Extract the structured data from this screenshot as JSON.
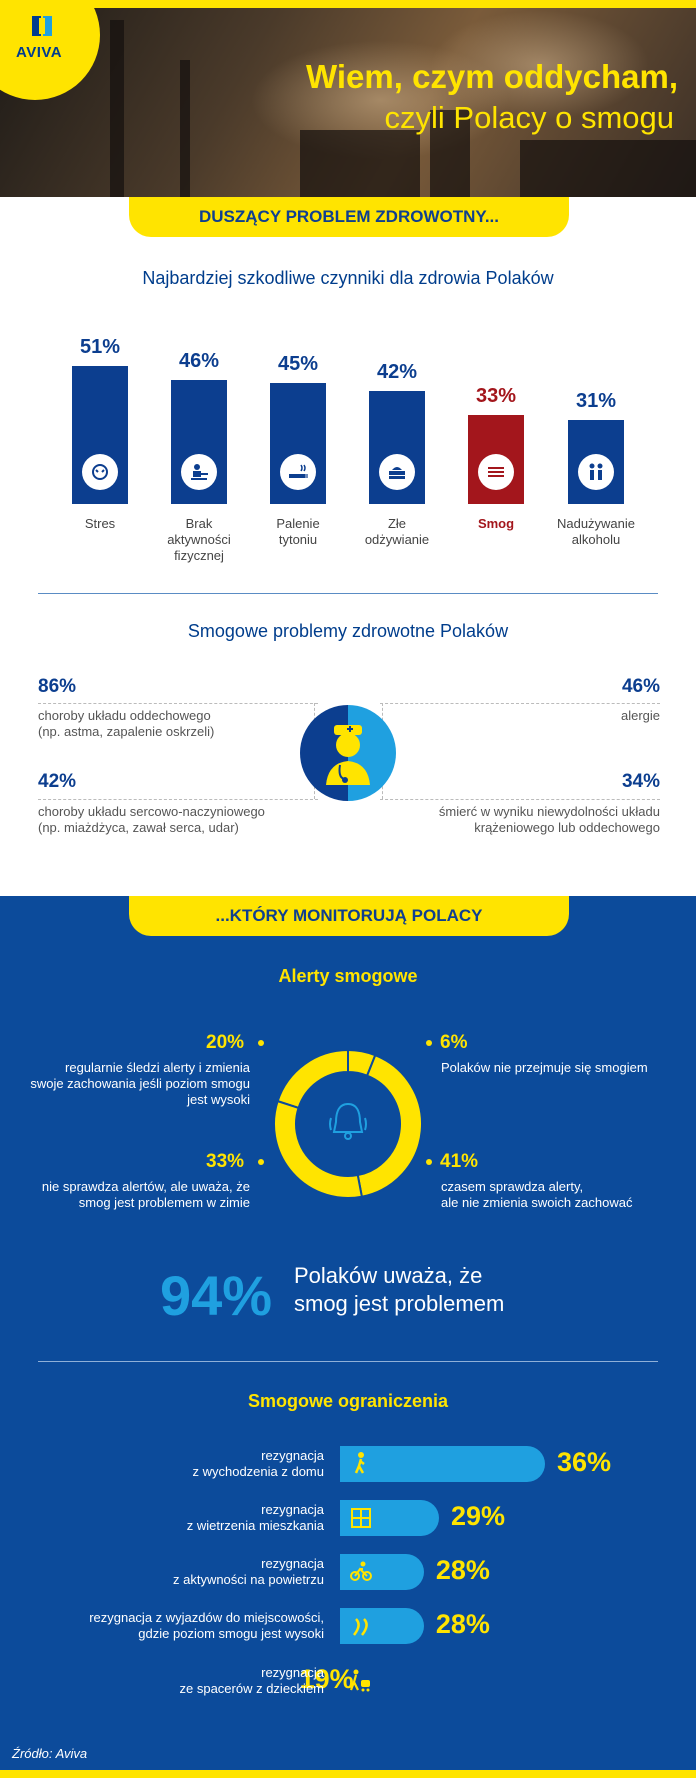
{
  "header": {
    "logo_text": "AVIVA",
    "title_line1": "Wiem, czym oddycham,",
    "title_line2": "czyli Polacy o smogu"
  },
  "section1": {
    "banner": "DUSZĄCY PROBLEM ZDROWOTNY...",
    "chart_title": "Najbardziej szkodliwe czynniki dla zdrowia Polaków"
  },
  "chart_data": {
    "type": "bar",
    "categories": [
      "Stres",
      "Brak aktywności fizycznej",
      "Palenie tytoniu",
      "Złe odżywianie",
      "Smog",
      "Nadużywanie alkoholu"
    ],
    "values": [
      51,
      46,
      45,
      42,
      33,
      31
    ],
    "value_labels": [
      "51%",
      "46%",
      "45%",
      "42%",
      "33%",
      "31%"
    ],
    "highlight_index": 4,
    "colors": {
      "default": "#0c3e8f",
      "highlight": "#a3161c"
    },
    "icons": [
      "head-stress-icon",
      "desk-sitting-icon",
      "cigarette-icon",
      "fast-food-icon",
      "smog-icon",
      "drinking-people-icon"
    ]
  },
  "bar_labels": [
    [
      "Stres"
    ],
    [
      "Brak",
      "aktywności",
      "fizycznej"
    ],
    [
      "Palenie",
      "tytoniu"
    ],
    [
      "Złe",
      "odżywianie"
    ],
    [
      "Smog"
    ],
    [
      "Nadużywanie",
      "alkoholu"
    ]
  ],
  "health": {
    "title": "Smogowe problemy zdrowotne Polaków",
    "items": [
      {
        "value": "86%",
        "line1": "choroby układu oddechowego",
        "line2": "(np. astma, zapalenie oskrzeli)"
      },
      {
        "value": "46%",
        "line1": "alergie",
        "line2": ""
      },
      {
        "value": "42%",
        "line1": "choroby układu sercowo-naczyniowego",
        "line2": "(np. miażdżyca, zawał serca, udar)"
      },
      {
        "value": "34%",
        "line1": "śmierć w wyniku niewydolności układu",
        "line2": "krążeniowego lub oddechowego"
      }
    ],
    "icon": "doctor-icon"
  },
  "section2": {
    "banner": "...KTÓRY MONITORUJĄ POLACY",
    "alerts_title": "Alerty smogowe"
  },
  "alerts": {
    "segments": [
      {
        "value": "20%",
        "lines": [
          "regularnie śledzi alerty i zmienia",
          "swoje zachowania jeśli poziom smogu",
          "jest wysoki"
        ]
      },
      {
        "value": "6%",
        "lines": [
          "Polaków nie przejmuje się smogiem"
        ]
      },
      {
        "value": "33%",
        "lines": [
          "nie sprawdza alertów, ale uważa, że",
          "smog jest problemem w zimie"
        ]
      },
      {
        "value": "41%",
        "lines": [
          "czasem sprawdza alerty,",
          "ale nie zmienia swoich zachować"
        ]
      }
    ],
    "donut_values": [
      20,
      6,
      41,
      33
    ],
    "icon": "bell-icon"
  },
  "big_stat": {
    "value": "94%",
    "line1": "Polaków uważa, że",
    "line2": "smog jest problemem"
  },
  "restrictions": {
    "title": "Smogowe ograniczenia",
    "items": [
      {
        "lines": [
          "rezygnacja",
          "z wychodzenia z domu"
        ],
        "value": "36%",
        "pct": 36,
        "icon": "walking-icon"
      },
      {
        "lines": [
          "rezygnacja",
          "z wietrzenia mieszkania"
        ],
        "value": "29%",
        "pct": 29,
        "icon": "window-icon"
      },
      {
        "lines": [
          "rezygnacja",
          "z aktywności na powietrzu"
        ],
        "value": "28%",
        "pct": 28,
        "icon": "bicycle-icon"
      },
      {
        "lines": [
          "rezygnacja z wyjazdów do miejscowości,",
          "gdzie poziom smogu jest wysoki"
        ],
        "value": "28%",
        "pct": 28,
        "icon": "road-trip-icon"
      },
      {
        "lines": [
          "rezygnacja",
          "ze spacerów z dzieckiem"
        ],
        "value": "19%",
        "pct": 19,
        "icon": "stroller-icon"
      }
    ]
  },
  "source": "Źródło: Aviva"
}
